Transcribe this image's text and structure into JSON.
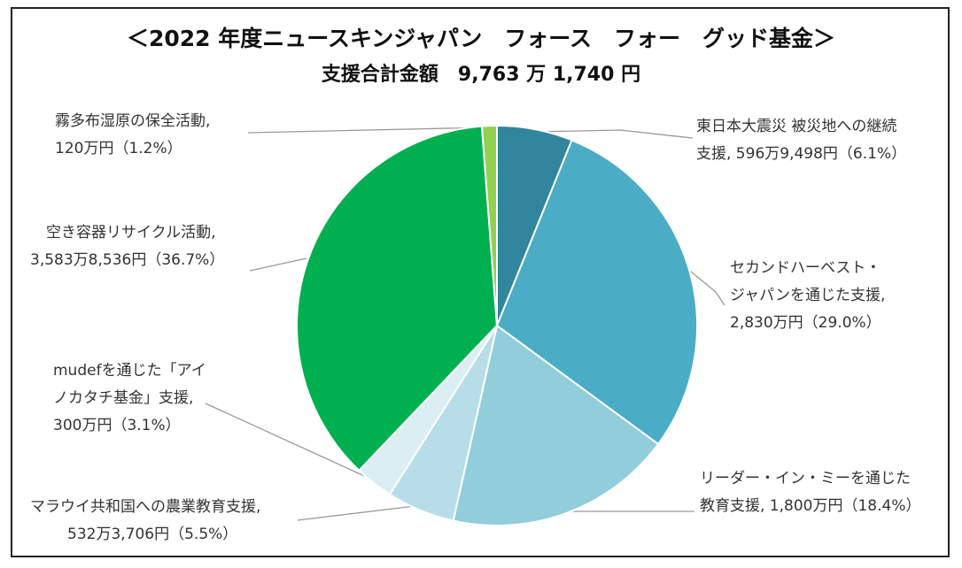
{
  "chart_data": {
    "type": "pie",
    "title": "＜2022 年度ニュースキンジャパン　フォース　フォー　グッド基金＞",
    "subtitle": "支援合計金額　9,763 万 1,740 円",
    "start": "12 o'clock, clockwise",
    "slices": [
      {
        "id": "tohoku",
        "value": 6.1,
        "color": "#31859c",
        "label_lines": [
          "東日本大震災 被災地への継続",
          "支援, 596万9,498円（6.1%）"
        ]
      },
      {
        "id": "second-harvest",
        "value": 29.0,
        "color": "#4bacc6",
        "label_lines": [
          "セカンドハーベスト・",
          "ジャパンを通じた支援,",
          "2,830万円（29.0%）"
        ]
      },
      {
        "id": "reader-in-me",
        "value": 18.4,
        "color": "#92cddc",
        "label_lines": [
          "リーダー・イン・ミーを通じた",
          "教育支援, 1,800万円（18.4%）"
        ]
      },
      {
        "id": "malawi",
        "value": 5.5,
        "color": "#b7dee8",
        "label_lines": [
          "マラウイ共和国への農業教育支援,",
          "532万3,706円（5.5%）"
        ]
      },
      {
        "id": "mudef",
        "value": 3.1,
        "color": "#daeef3",
        "label_lines": [
          "mudefを通じた「アイ",
          "ノカタチ基金」支援,",
          "300万円（3.1%）"
        ]
      },
      {
        "id": "recycle",
        "value": 36.7,
        "color": "#00b050",
        "label_lines": [
          "空き容器リサイクル活動,",
          "3,583万8,536円（36.7%）"
        ]
      },
      {
        "id": "kiritappu",
        "value": 1.2,
        "color": "#92d050",
        "label_lines": [
          "霧多布湿原の保全活動,",
          "120万円（1.2%）"
        ]
      }
    ]
  }
}
